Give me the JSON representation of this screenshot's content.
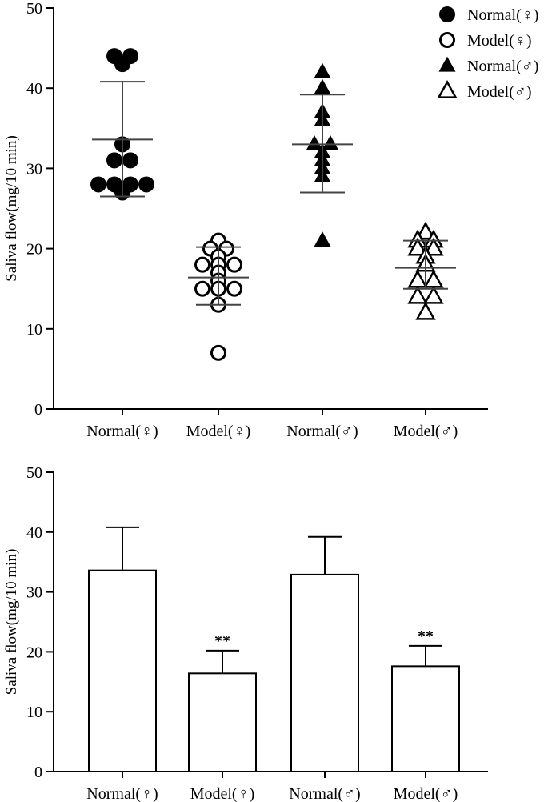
{
  "chart_data": [
    {
      "type": "scatter",
      "ylabel": "Saliva flow(mg/10 min)",
      "ylim": [
        0,
        50
      ],
      "yticks": [
        "0",
        "10",
        "20",
        "30",
        "40",
        "50"
      ],
      "grid": false,
      "legend_position": "top-right",
      "categories": [
        "Normal(♀)",
        "Model(♀)",
        "Normal(♂)",
        "Model(♂)"
      ],
      "series": [
        {
          "name": "Normal(♀)",
          "marker": "filled-circle",
          "values": [
            44,
            44,
            43,
            33,
            31,
            31,
            28,
            28,
            28,
            28,
            27
          ],
          "mean": 33.6,
          "sd_low": 26.5,
          "sd_high": 40.8
        },
        {
          "name": "Model(♀)",
          "marker": "open-circle",
          "values": [
            21,
            20,
            20,
            19,
            18,
            18,
            18,
            17,
            16,
            15,
            15,
            15,
            13,
            7
          ],
          "mean": 16.4,
          "sd_low": 13.0,
          "sd_high": 20.2
        },
        {
          "name": "Normal(♂)",
          "marker": "filled-triangle",
          "values": [
            42,
            40,
            37,
            36,
            33,
            33,
            32,
            31,
            30,
            29,
            21
          ],
          "mean": 33.0,
          "sd_low": 27.0,
          "sd_high": 39.2
        },
        {
          "name": "Model(♂)",
          "marker": "open-triangle",
          "values": [
            22,
            21,
            21,
            20,
            20,
            19,
            18,
            16,
            16,
            14,
            14,
            12
          ],
          "mean": 17.6,
          "sd_low": 15.0,
          "sd_high": 21.0
        }
      ]
    },
    {
      "type": "bar",
      "ylabel": "Saliva flow(mg/10 min)",
      "ylim": [
        0,
        50
      ],
      "yticks": [
        "0",
        "10",
        "20",
        "30",
        "40",
        "50"
      ],
      "grid": false,
      "categories": [
        "Normal(♀)",
        "Model(♀)",
        "Normal(♂)",
        "Model(♂)"
      ],
      "values": [
        33.6,
        16.4,
        32.9,
        17.6
      ],
      "error_upper": [
        40.8,
        20.2,
        39.2,
        21.0
      ],
      "annotations": [
        "",
        "**",
        "",
        "**"
      ]
    }
  ]
}
